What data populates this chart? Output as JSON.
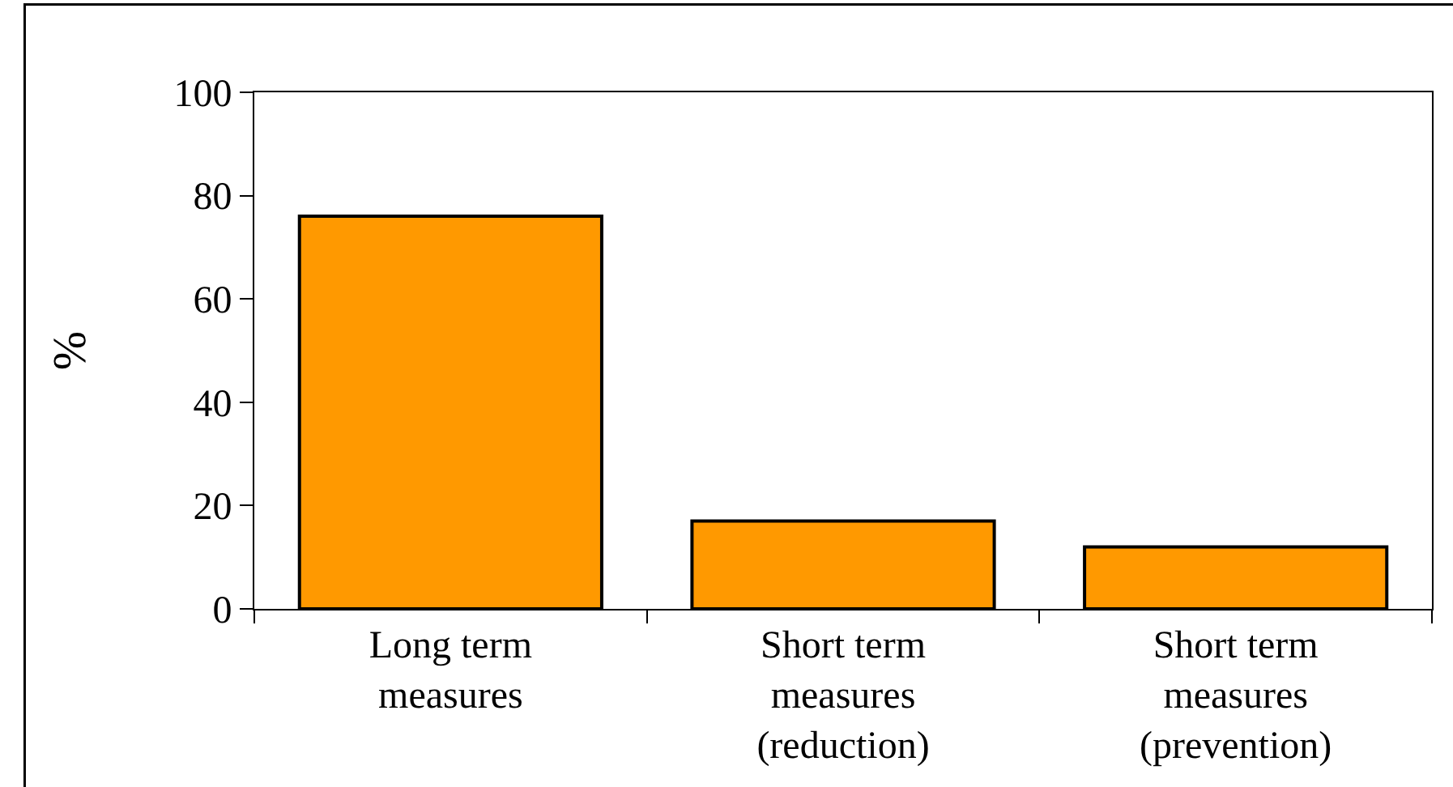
{
  "chart_data": {
    "type": "bar",
    "ylabel": "%",
    "categories": [
      "Long term\nmeasures",
      "Short term\nmeasures\n(reduction)",
      "Short term\nmeasures\n(prevention)"
    ],
    "values": [
      76,
      17,
      12
    ],
    "color": "#ff9900",
    "ylim": [
      0,
      100
    ],
    "yticks": [
      0,
      20,
      40,
      60,
      80,
      100
    ]
  }
}
